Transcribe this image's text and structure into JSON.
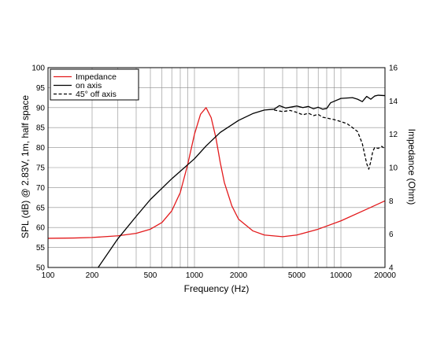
{
  "chart_data": {
    "type": "line",
    "xlabel": "Frequency (Hz)",
    "ylabel_left": "SPL (dB) @ 2.83V, 1m, half space",
    "ylabel_right": "Impedance (Ohm)",
    "x_scale": "log",
    "xlim": [
      100,
      20000
    ],
    "ylim_left": [
      50,
      100
    ],
    "ylim_right": [
      4,
      16
    ],
    "x_ticks": [
      100,
      200,
      500,
      1000,
      2000,
      5000,
      10000,
      20000
    ],
    "x_tick_labels": [
      "100",
      "200",
      "500",
      "1000",
      "2000",
      "5000",
      "10000",
      "20000"
    ],
    "y_left_ticks": [
      50,
      55,
      60,
      65,
      70,
      75,
      80,
      85,
      90,
      95,
      100
    ],
    "y_left_tick_labels": [
      "50",
      "55",
      "60",
      "65",
      "70",
      "75",
      "80",
      "85",
      "90",
      "95",
      "100"
    ],
    "y_right_ticks": [
      4,
      6,
      8,
      10,
      12,
      14,
      16
    ],
    "y_right_tick_labels": [
      "4",
      "6",
      "8",
      "10",
      "12",
      "14",
      "16"
    ],
    "grid": true,
    "legend_position": "top-left",
    "series": [
      {
        "name": "Impedance",
        "axis": "right",
        "color": "#e31a1c",
        "dash": "solid",
        "x": [
          100,
          150,
          200,
          300,
          400,
          500,
          600,
          700,
          800,
          900,
          1000,
          1100,
          1200,
          1300,
          1400,
          1500,
          1600,
          1800,
          2000,
          2500,
          3000,
          4000,
          5000,
          7000,
          10000,
          15000,
          20000
        ],
        "y": [
          5.75,
          5.77,
          5.8,
          5.9,
          6.05,
          6.3,
          6.7,
          7.4,
          8.5,
          10.2,
          12.0,
          13.2,
          13.6,
          13.0,
          11.8,
          10.3,
          9.1,
          7.7,
          6.9,
          6.2,
          5.95,
          5.85,
          5.95,
          6.3,
          6.8,
          7.5,
          8.0
        ]
      },
      {
        "name": "on axis",
        "axis": "left",
        "color": "#000000",
        "dash": "solid",
        "x": [
          220,
          300,
          400,
          500,
          700,
          1000,
          1200,
          1500,
          2000,
          2500,
          3000,
          3500,
          3800,
          4200,
          5000,
          5500,
          6000,
          6500,
          7000,
          7500,
          8000,
          8500,
          10000,
          12000,
          13000,
          14000,
          15000,
          16000,
          17000,
          18000,
          20000
        ],
        "y": [
          50,
          57.2,
          62.8,
          67,
          72.2,
          77.2,
          80.4,
          83.8,
          86.8,
          88.5,
          89.4,
          89.6,
          90.5,
          89.9,
          90.4,
          90.0,
          90.3,
          89.7,
          90.1,
          89.6,
          89.8,
          91.2,
          92.3,
          92.5,
          92.1,
          91.5,
          92.8,
          92.1,
          92.9,
          93.1,
          93.0
        ]
      },
      {
        "name": "45° off axis",
        "axis": "left",
        "color": "#000000",
        "dash": "dashed",
        "x": [
          3500,
          4000,
          4500,
          5000,
          5500,
          6000,
          6500,
          7000,
          7500,
          8000,
          9000,
          10000,
          11000,
          12000,
          13000,
          14000,
          15000,
          15500,
          16000,
          16500,
          17000,
          18000,
          19000,
          20000
        ],
        "y": [
          89.4,
          89.0,
          89.3,
          88.8,
          88.2,
          88.6,
          88.0,
          88.3,
          87.6,
          87.4,
          87.0,
          86.5,
          86.0,
          85.0,
          84.0,
          81.0,
          76.0,
          74.6,
          76.5,
          79.0,
          80.0,
          79.8,
          80.3,
          79.7
        ]
      }
    ]
  }
}
